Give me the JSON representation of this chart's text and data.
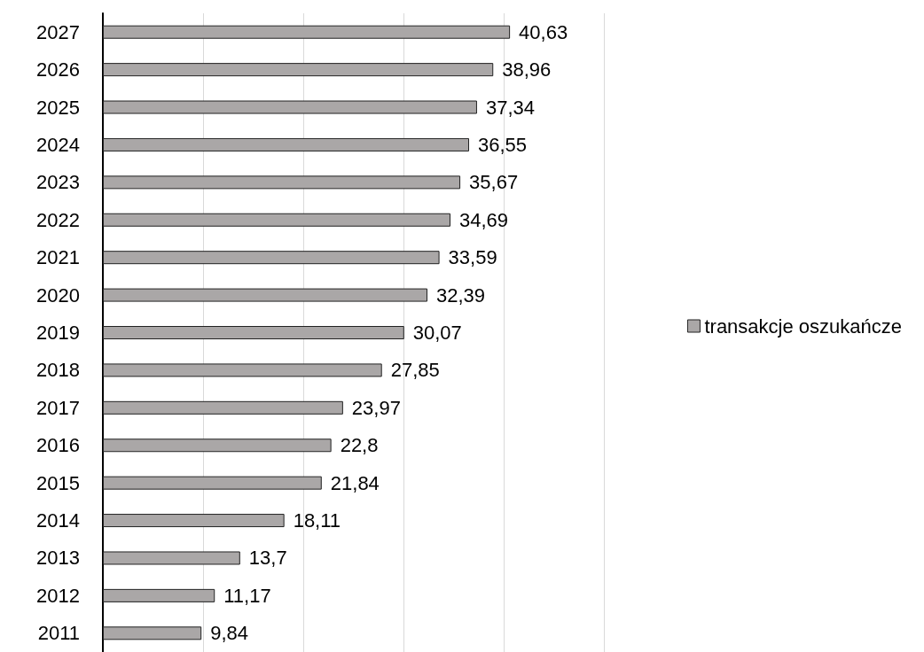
{
  "chart_data": {
    "type": "bar",
    "orientation": "horizontal",
    "categories": [
      "2027",
      "2026",
      "2025",
      "2024",
      "2023",
      "2022",
      "2021",
      "2020",
      "2019",
      "2018",
      "2017",
      "2016",
      "2015",
      "2014",
      "2013",
      "2012",
      "2011"
    ],
    "series": [
      {
        "name": "transakcje oszukańcze",
        "color": "#aaa7a7",
        "values": [
          40.63,
          38.96,
          37.34,
          36.55,
          35.67,
          34.69,
          33.59,
          32.39,
          30.07,
          27.85,
          23.97,
          22.8,
          21.84,
          18.11,
          13.7,
          11.17,
          9.84
        ],
        "value_labels": [
          "40,63",
          "38,96",
          "37,34",
          "36,55",
          "35,67",
          "34,69",
          "33,59",
          "32,39",
          "30,07",
          "27,85",
          "23,97",
          "22,8",
          "21,84",
          "18,11",
          "13,7",
          "11,17",
          "9,84"
        ]
      }
    ],
    "xlim": [
      0,
      50
    ],
    "xticks": [
      {
        "value": 0,
        "label": null
      },
      {
        "value": 10,
        "label": null
      },
      {
        "value": 20,
        "label": null
      },
      {
        "value": 30,
        "label": null
      },
      {
        "value": 40,
        "label": null
      },
      {
        "value": 50,
        "label": null
      }
    ],
    "tick_labels": "y",
    "grid": "x",
    "legend": "right"
  }
}
